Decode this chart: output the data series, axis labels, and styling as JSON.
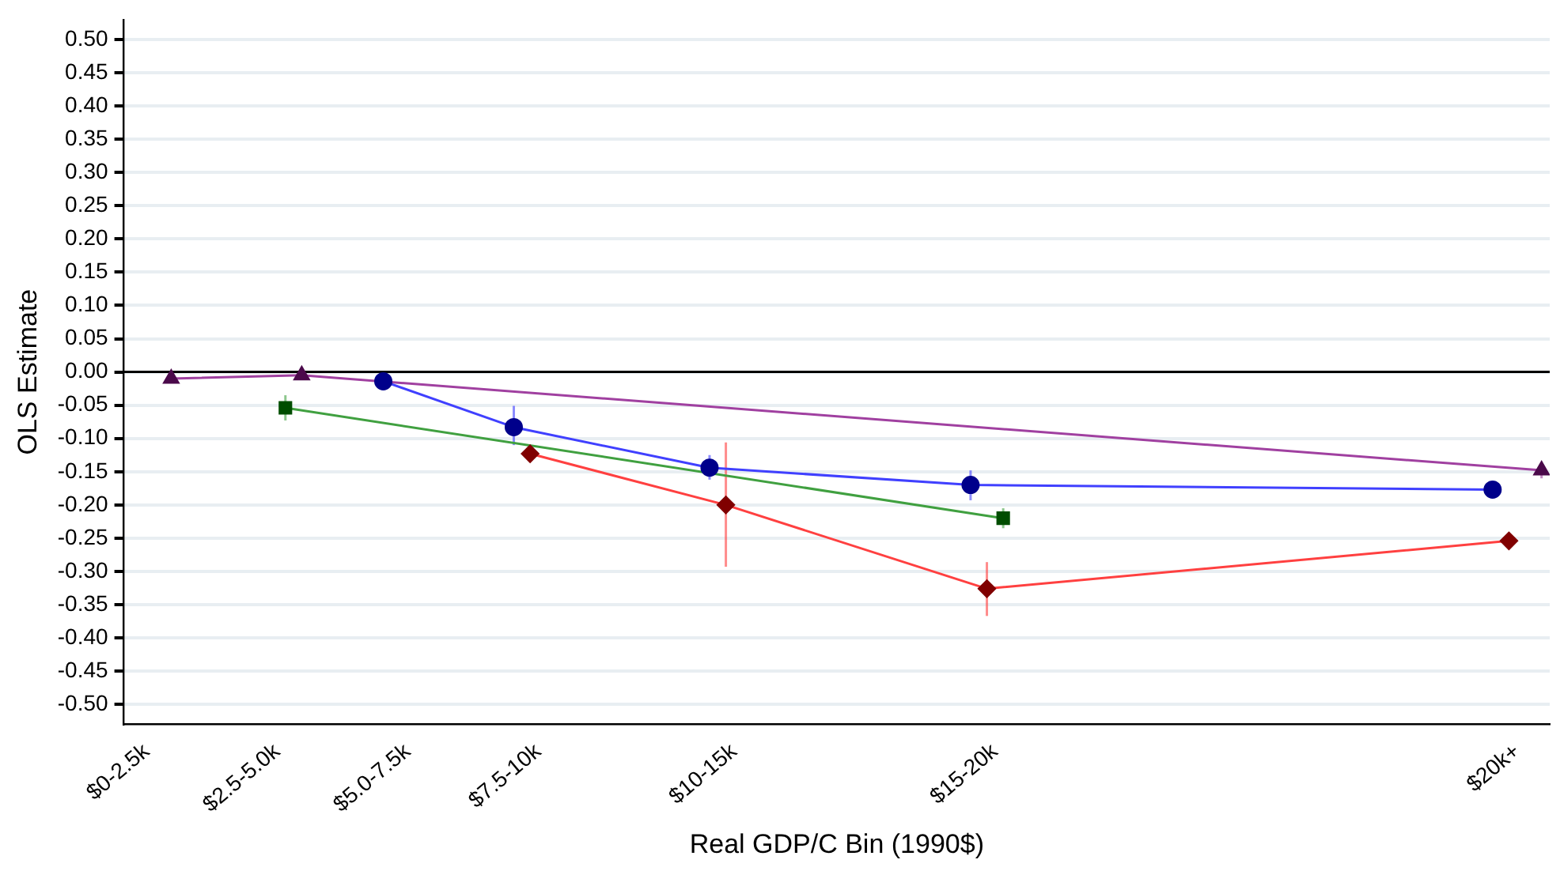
{
  "chart_data": {
    "type": "line",
    "xlabel": "Real GDP/C Bin (1990$)",
    "ylabel": "OLS Estimate",
    "categories": [
      "$0-2.5k",
      null,
      "$2.5-5.0k",
      null,
      "$5.0-7.5k",
      null,
      "$7.5-10k",
      null,
      null,
      "$10-15k",
      null,
      null,
      null,
      "$15-20k",
      null,
      null,
      null,
      null,
      null,
      null,
      null,
      "$20k+"
    ],
    "ylim": [
      -0.53,
      0.53
    ],
    "yticks": [
      {
        "value": -0.5,
        "label": "-0.50"
      },
      {
        "value": -0.45,
        "label": "-0.45"
      },
      {
        "value": -0.4,
        "label": "-0.40"
      },
      {
        "value": -0.35,
        "label": "-0.35"
      },
      {
        "value": -0.3,
        "label": "-0.30"
      },
      {
        "value": -0.25,
        "label": "-0.25"
      },
      {
        "value": -0.2,
        "label": "-0.20"
      },
      {
        "value": -0.15,
        "label": "-0.15"
      },
      {
        "value": -0.1,
        "label": "-0.10"
      },
      {
        "value": -0.05,
        "label": "-0.05"
      },
      {
        "value": 0,
        "label": "0.00"
      },
      {
        "value": 0.05,
        "label": "0.05"
      },
      {
        "value": 0.1,
        "label": "0.10"
      },
      {
        "value": 0.15,
        "label": "0.15"
      },
      {
        "value": 0.2,
        "label": "0.20"
      },
      {
        "value": 0.25,
        "label": "0.25"
      },
      {
        "value": 0.3,
        "label": "0.30"
      },
      {
        "value": 0.35,
        "label": "0.35"
      },
      {
        "value": 0.4,
        "label": "0.40"
      },
      {
        "value": 0.45,
        "label": "0.45"
      },
      {
        "value": 0.5,
        "label": "0.50"
      }
    ],
    "grid": "y",
    "legend": false,
    "line_style": "solid",
    "ref_lines": [
      {
        "axis": "y",
        "value": 0,
        "color": "#000000"
      }
    ],
    "series": [
      {
        "color": "#4040ff",
        "colors": [
          "#00008b",
          "#00008b",
          "#00008b",
          "#00008b",
          "#00008b"
        ],
        "marker": "circle",
        "x": [
          "$5.0-7.5k",
          "$7.5-10k",
          "$10-15k",
          "$15-20k",
          "$20k+"
        ],
        "values": [
          -0.014,
          -0.083,
          -0.144,
          -0.17,
          -0.177
        ],
        "errors": [
          null,
          [
            -0.11,
            -0.051
          ],
          [
            -0.162,
            -0.125
          ],
          [
            -0.193,
            -0.148
          ],
          null
        ]
      },
      {
        "color": "#ff4040",
        "colors": [
          "#800000",
          "#800000",
          "#800000",
          "#800000"
        ],
        "marker": "diamond",
        "x": [
          "$7.5-10k",
          "$10-15k",
          "$15-20k",
          "$20k+"
        ],
        "values": [
          -0.123,
          -0.2,
          -0.326,
          -0.254
        ],
        "errors": [
          null,
          [
            -0.293,
            -0.106
          ],
          [
            -0.367,
            -0.286
          ],
          null
        ]
      },
      {
        "color": "#40a040",
        "colors": [
          "#004d00",
          "#004d00"
        ],
        "marker": "square",
        "x": [
          "$2.5-5.0k",
          "$15-20k"
        ],
        "values": [
          -0.054,
          -0.22
        ],
        "errors": [
          [
            -0.073,
            -0.035
          ],
          [
            -0.235,
            -0.205
          ]
        ]
      },
      {
        "color": "#a040a0",
        "colors": [
          "#4b0a4b",
          "#4b0a4b",
          "#4b0a4b"
        ],
        "marker": "triangle",
        "x": [
          "$0-2.5k",
          "$2.5-5.0k",
          "$20k+"
        ],
        "values": [
          -0.01,
          -0.005,
          -0.148
        ],
        "errors": [
          null,
          null,
          [
            -0.16,
            -0.137
          ]
        ]
      }
    ]
  }
}
